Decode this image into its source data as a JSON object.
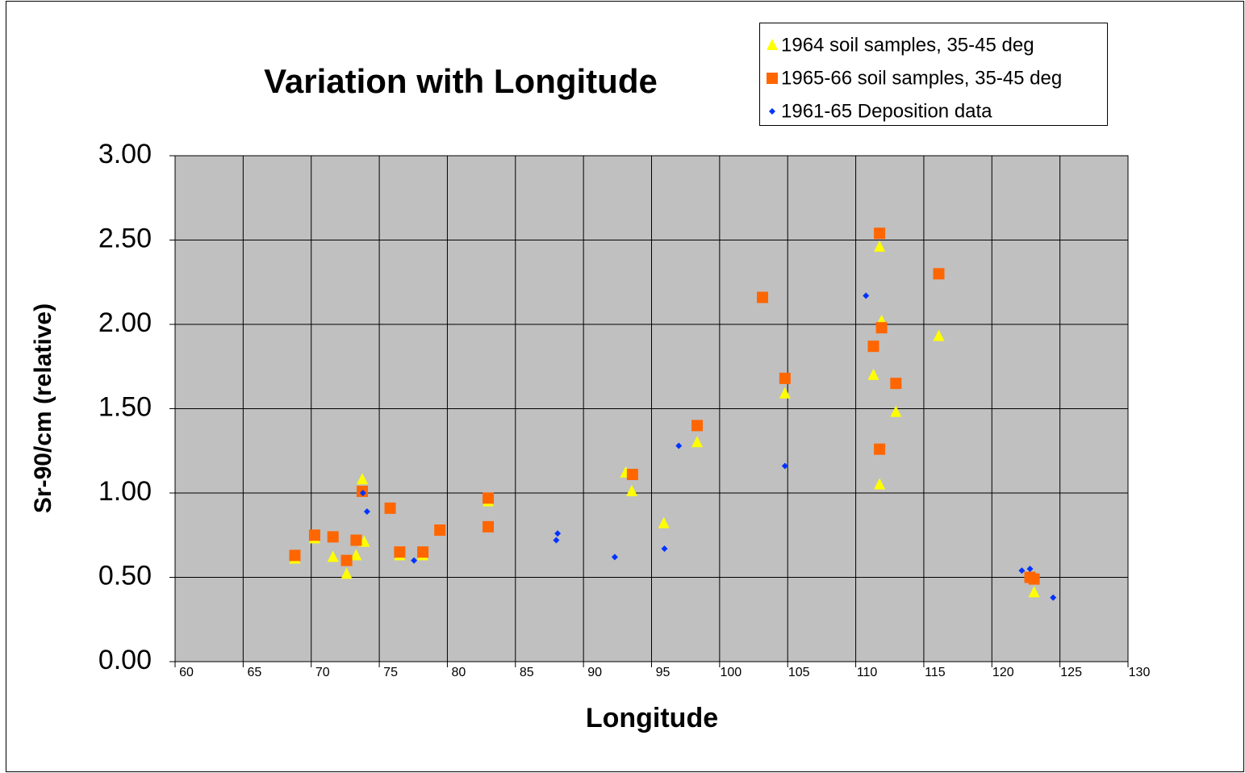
{
  "chart_data": {
    "type": "scatter",
    "title": "Variation with Longitude",
    "x_label": "Longitude",
    "y_label": "Sr-90/cm (relative)",
    "xlim": [
      60,
      130
    ],
    "xticks": [
      60,
      65,
      70,
      75,
      80,
      85,
      90,
      95,
      100,
      105,
      110,
      115,
      120,
      125,
      130
    ],
    "ylim": [
      0,
      3
    ],
    "yticks": [
      {
        "value": 0,
        "label": "0.00"
      },
      {
        "value": 0.5,
        "label": "0.50"
      },
      {
        "value": 1,
        "label": "1.00"
      },
      {
        "value": 1.5,
        "label": "1.50"
      },
      {
        "value": 2,
        "label": "2.00"
      },
      {
        "value": 2.5,
        "label": "2.50"
      },
      {
        "value": 3,
        "label": "3.00"
      }
    ],
    "grid": true,
    "legend": "top-right",
    "series": [
      {
        "name": "1964 soil samples, 35-45 deg",
        "color": "#ffff00",
        "marker": "triangle",
        "x": [
          68.8,
          70.25,
          71.6,
          72.6,
          73.3,
          73.75,
          73.9,
          76.5,
          78.2,
          83.0,
          93.1,
          93.55,
          95.9,
          98.35,
          104.8,
          111.3,
          111.75,
          111.75,
          111.9,
          112.95,
          116.1,
          123.1
        ],
        "values": [
          0.61,
          0.73,
          0.62,
          0.52,
          0.63,
          1.08,
          0.71,
          0.63,
          0.63,
          0.95,
          1.12,
          1.01,
          0.82,
          1.3,
          1.59,
          1.7,
          2.46,
          1.05,
          2.02,
          1.48,
          1.93,
          0.41
        ]
      },
      {
        "name": "1965-66 soil samples, 35-45 deg",
        "color": "#ff6600",
        "marker": "square",
        "x": [
          68.8,
          70.25,
          71.6,
          72.6,
          73.3,
          73.75,
          75.8,
          76.5,
          78.2,
          79.45,
          83.0,
          83.0,
          93.6,
          98.35,
          103.15,
          104.8,
          111.3,
          111.75,
          111.75,
          111.9,
          112.95,
          116.1,
          122.8,
          123.1
        ],
        "values": [
          0.63,
          0.75,
          0.74,
          0.6,
          0.72,
          1.01,
          0.91,
          0.65,
          0.65,
          0.78,
          0.97,
          0.8,
          1.11,
          1.4,
          2.16,
          1.68,
          1.87,
          2.54,
          1.26,
          1.98,
          1.65,
          2.3,
          0.5,
          0.49
        ]
      },
      {
        "name": "1961-65 Deposition data",
        "color": "#0033ff",
        "marker": "diamond",
        "x": [
          73.8,
          74.1,
          77.55,
          88.0,
          88.1,
          92.3,
          95.95,
          97.0,
          104.8,
          110.75,
          122.2,
          122.8,
          124.5
        ],
        "values": [
          1.0,
          0.89,
          0.6,
          0.72,
          0.76,
          0.62,
          0.67,
          1.28,
          1.16,
          2.17,
          0.54,
          0.55,
          0.38
        ]
      }
    ]
  }
}
